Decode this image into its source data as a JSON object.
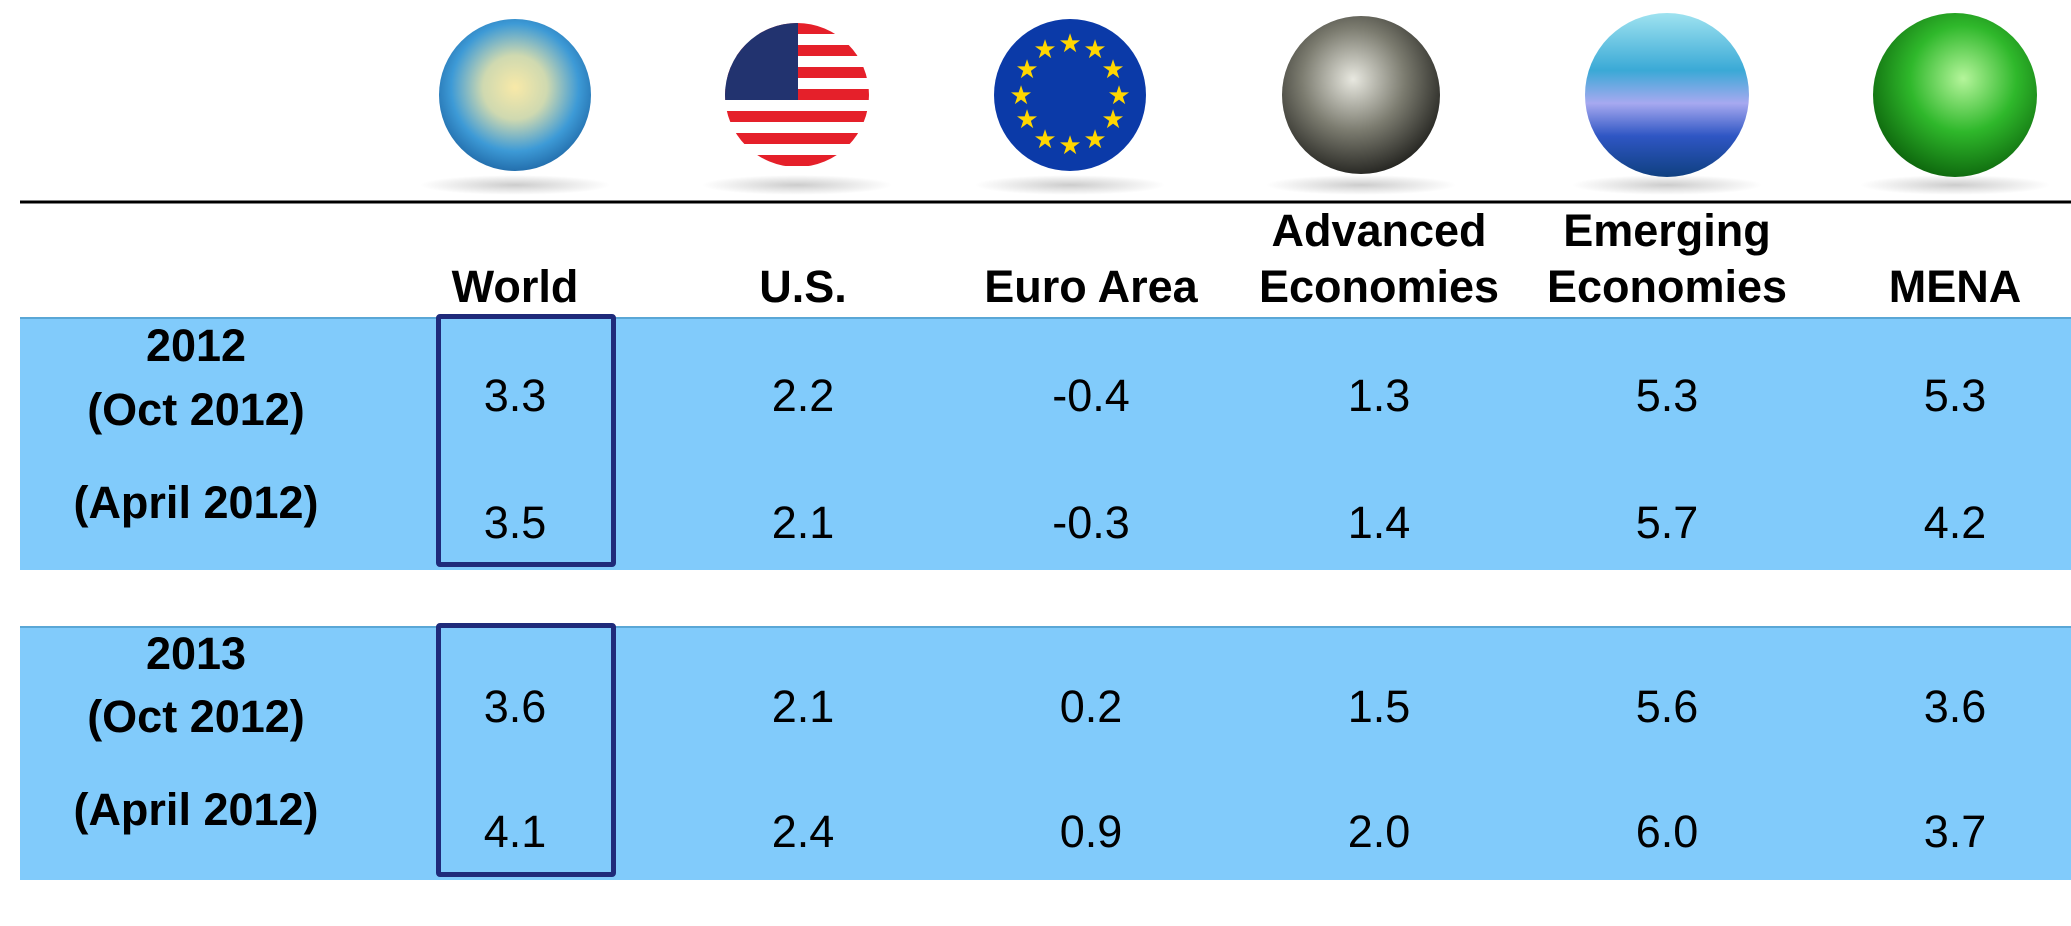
{
  "table": {
    "columns": [
      "World",
      "U.S.",
      "Euro Area",
      "Advanced Economies",
      "Emerging Economies",
      "MENA"
    ],
    "groups": [
      {
        "year": "2012",
        "rows": [
          {
            "label": "(Oct 2012)",
            "values": [
              "3.3",
              "2.2",
              "-0.4",
              "1.3",
              "5.3",
              "5.3"
            ]
          },
          {
            "label": "(April 2012)",
            "values": [
              "3.5",
              "2.1",
              "-0.3",
              "1.4",
              "5.7",
              "4.2"
            ]
          }
        ]
      },
      {
        "year": "2013",
        "rows": [
          {
            "label": "(Oct 2012)",
            "values": [
              "3.6",
              "2.1",
              "0.2",
              "1.5",
              "5.6",
              "3.6"
            ]
          },
          {
            "label": "(April 2012)",
            "values": [
              "4.1",
              "2.4",
              "0.9",
              "2.0",
              "6.0",
              "3.7"
            ]
          }
        ]
      }
    ]
  }
}
